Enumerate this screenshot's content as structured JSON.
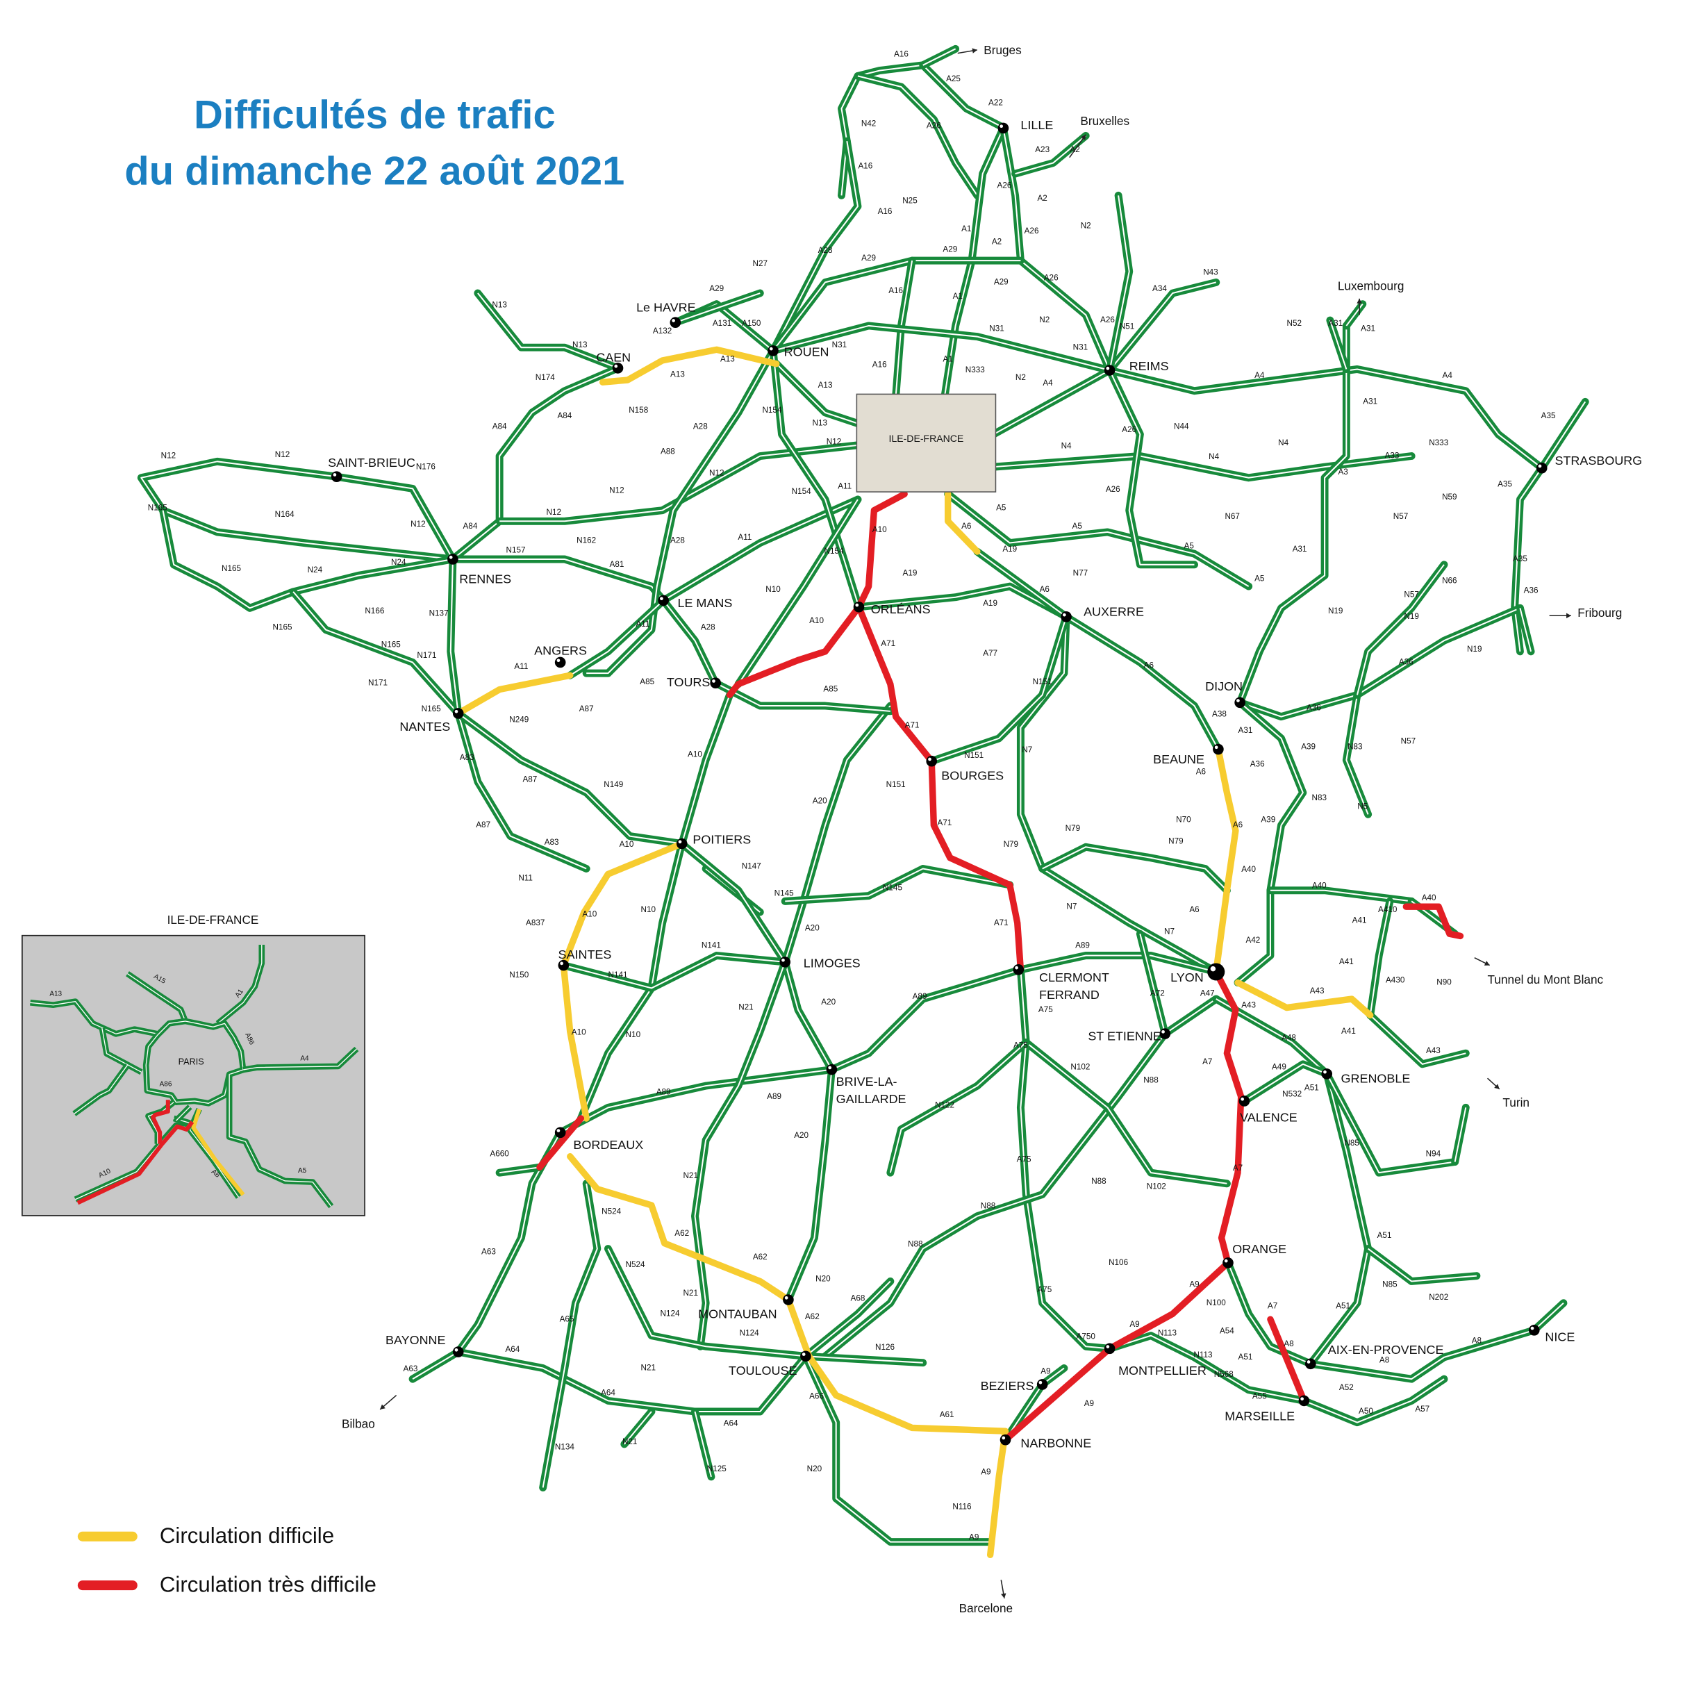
{
  "title": {
    "line1": "Difficultés de trafic",
    "line2": "du dimanche 22 août 2021"
  },
  "colors": {
    "road": "#178a3b",
    "difficult": "#f7cc30",
    "very_difficult": "#e31e24",
    "title": "#1b7fc1",
    "idf_box": "#e2ddd2",
    "inset_bg": "#c8c8c8"
  },
  "legend": [
    {
      "label": "Circulation difficile",
      "color": "#f7cc30"
    },
    {
      "label": "Circulation très difficile",
      "color": "#e31e24"
    }
  ],
  "idf_box_label": "ILE-DE-FRANCE",
  "inset": {
    "title": "ILE-DE-FRANCE",
    "city": "PARIS",
    "road_labels": [
      "A15",
      "A13",
      "A1",
      "A86",
      "A4",
      "A86",
      "A10",
      "A6",
      "A5"
    ]
  },
  "cities": [
    {
      "lines": [
        "LILLE"
      ]
    },
    {
      "lines": [
        "ROUEN"
      ]
    },
    {
      "lines": [
        "Le HAVRE"
      ]
    },
    {
      "lines": [
        "CAEN"
      ]
    },
    {
      "lines": [
        "REIMS"
      ]
    },
    {
      "lines": [
        "STRASBOURG"
      ]
    },
    {
      "lines": [
        "SAINT-BRIEUC"
      ]
    },
    {
      "lines": [
        "RENNES"
      ]
    },
    {
      "lines": [
        "LE MANS"
      ]
    },
    {
      "lines": [
        "ORLÉANS"
      ]
    },
    {
      "lines": [
        "AUXERRE"
      ]
    },
    {
      "lines": [
        "ANGERS"
      ]
    },
    {
      "lines": [
        "TOURS"
      ]
    },
    {
      "lines": [
        "NANTES"
      ]
    },
    {
      "lines": [
        "DIJON"
      ]
    },
    {
      "lines": [
        "BEAUNE"
      ]
    },
    {
      "lines": [
        "BOURGES"
      ]
    },
    {
      "lines": [
        "POITIERS"
      ]
    },
    {
      "lines": [
        "LIMOGES"
      ]
    },
    {
      "lines": [
        "SAINTES"
      ]
    },
    {
      "lines": [
        "CLERMONT",
        "FERRAND"
      ]
    },
    {
      "lines": [
        "LYON"
      ]
    },
    {
      "lines": [
        "ST ETIENNE"
      ]
    },
    {
      "lines": [
        "GRENOBLE"
      ]
    },
    {
      "lines": [
        "BRIVE-LA-",
        "GAILLARDE"
      ]
    },
    {
      "lines": [
        "VALENCE"
      ]
    },
    {
      "lines": [
        "BORDEAUX"
      ]
    },
    {
      "lines": [
        "ORANGE"
      ]
    },
    {
      "lines": [
        "MONTAUBAN"
      ]
    },
    {
      "lines": [
        "BAYONNE"
      ]
    },
    {
      "lines": [
        "TOULOUSE"
      ]
    },
    {
      "lines": [
        "MONTPELLIER"
      ]
    },
    {
      "lines": [
        "AIX-EN-PROVENCE"
      ]
    },
    {
      "lines": [
        "NICE"
      ]
    },
    {
      "lines": [
        "BEZIERS"
      ]
    },
    {
      "lines": [
        "MARSEILLE"
      ]
    },
    {
      "lines": [
        "NARBONNE"
      ]
    }
  ],
  "destinations": [
    "Bruges",
    "Bruxelles",
    "Luxembourg",
    "Fribourg",
    "Tunnel du Mont Blanc",
    "Turin",
    "Barcelone",
    "Bilbao"
  ],
  "road_labels": [
    "A16",
    "A25",
    "A22",
    "A23",
    "A2",
    "N42",
    "A26",
    "A16",
    "A16",
    "N25",
    "A1",
    "A2",
    "A26",
    "A26",
    "A2",
    "A28",
    "A29",
    "A29",
    "N27",
    "A29",
    "N2",
    "A26",
    "A29",
    "A16",
    "A1",
    "N2",
    "A26",
    "N51",
    "A34",
    "N43",
    "A150",
    "A131",
    "A132",
    "N13",
    "N13",
    "A13",
    "A13",
    "A13",
    "N31",
    "N31",
    "N31",
    "A1",
    "A16",
    "N333",
    "N2",
    "A4",
    "A4",
    "A4",
    "N52",
    "A31",
    "A31",
    "A31",
    "A35",
    "N174",
    "A84",
    "A84",
    "N158",
    "A88",
    "A28",
    "N154",
    "N13",
    "N12",
    "N12",
    "N154",
    "A11",
    "A10",
    "A6",
    "A5",
    "A5",
    "N4",
    "N4",
    "N4",
    "A26",
    "A26",
    "N44",
    "A33",
    "N333",
    "A3",
    "N59",
    "N57",
    "A35",
    "A35",
    "A36",
    "N66",
    "N57",
    "N19",
    "N19",
    "N19",
    "A31",
    "A5",
    "A5",
    "N67",
    "N77",
    "A6",
    "A19",
    "A19",
    "A19",
    "N10",
    "N154",
    "A11",
    "N12",
    "A84",
    "N12",
    "N157",
    "N162",
    "A81",
    "A28",
    "N12",
    "N176",
    "N12",
    "N12",
    "N165",
    "N164",
    "N165",
    "N24",
    "N24",
    "N166",
    "N165",
    "N165",
    "N137",
    "N171",
    "N171",
    "N165",
    "A11",
    "A11",
    "A28",
    "A10",
    "A71",
    "A85",
    "A85",
    "A77",
    "N151",
    "A6",
    "A87",
    "N249",
    "A83",
    "A87",
    "A87",
    "N149",
    "A10",
    "A71",
    "N151",
    "N151",
    "A20",
    "N7",
    "A83",
    "A10",
    "N11",
    "N147",
    "N145",
    "N145",
    "A71",
    "N79",
    "N79",
    "N79",
    "N70",
    "A6",
    "A39",
    "A36",
    "A6",
    "A38",
    "A31",
    "A36",
    "A39",
    "N83",
    "N5",
    "N83",
    "N57",
    "A36",
    "A40",
    "A40",
    "A40",
    "A6",
    "N7",
    "N7",
    "A20",
    "N10",
    "A10",
    "A837",
    "N141",
    "N141",
    "N150",
    "A71",
    "A89",
    "A75",
    "A72",
    "A47",
    "A42",
    "A43",
    "A43",
    "A41",
    "A41",
    "A410",
    "A430",
    "N90",
    "A89",
    "N21",
    "A20",
    "N10",
    "A10",
    "A75",
    "N102",
    "N88",
    "A7",
    "A48",
    "A41",
    "A43",
    "A49",
    "N532",
    "A51",
    "A89",
    "A89",
    "N122",
    "A20",
    "N85",
    "N94",
    "A75",
    "N102",
    "A7",
    "N88",
    "A660",
    "N21",
    "N88",
    "N524",
    "A62",
    "A62",
    "N88",
    "N106",
    "A63",
    "N524",
    "N20",
    "A9",
    "N100",
    "A75",
    "A51",
    "N85",
    "N202",
    "A51",
    "A7",
    "N21",
    "A65",
    "N124",
    "A62",
    "A68",
    "N124",
    "N126",
    "A750",
    "A9",
    "N113",
    "N113",
    "N568",
    "A54",
    "A8",
    "A8",
    "A8",
    "A51",
    "A55",
    "A52",
    "A50",
    "A57",
    "A9",
    "A9",
    "A64",
    "A63",
    "N21",
    "A64",
    "A66",
    "A61",
    "A64",
    "N134",
    "N21",
    "N125",
    "N20",
    "A9",
    "N116",
    "A9"
  ]
}
